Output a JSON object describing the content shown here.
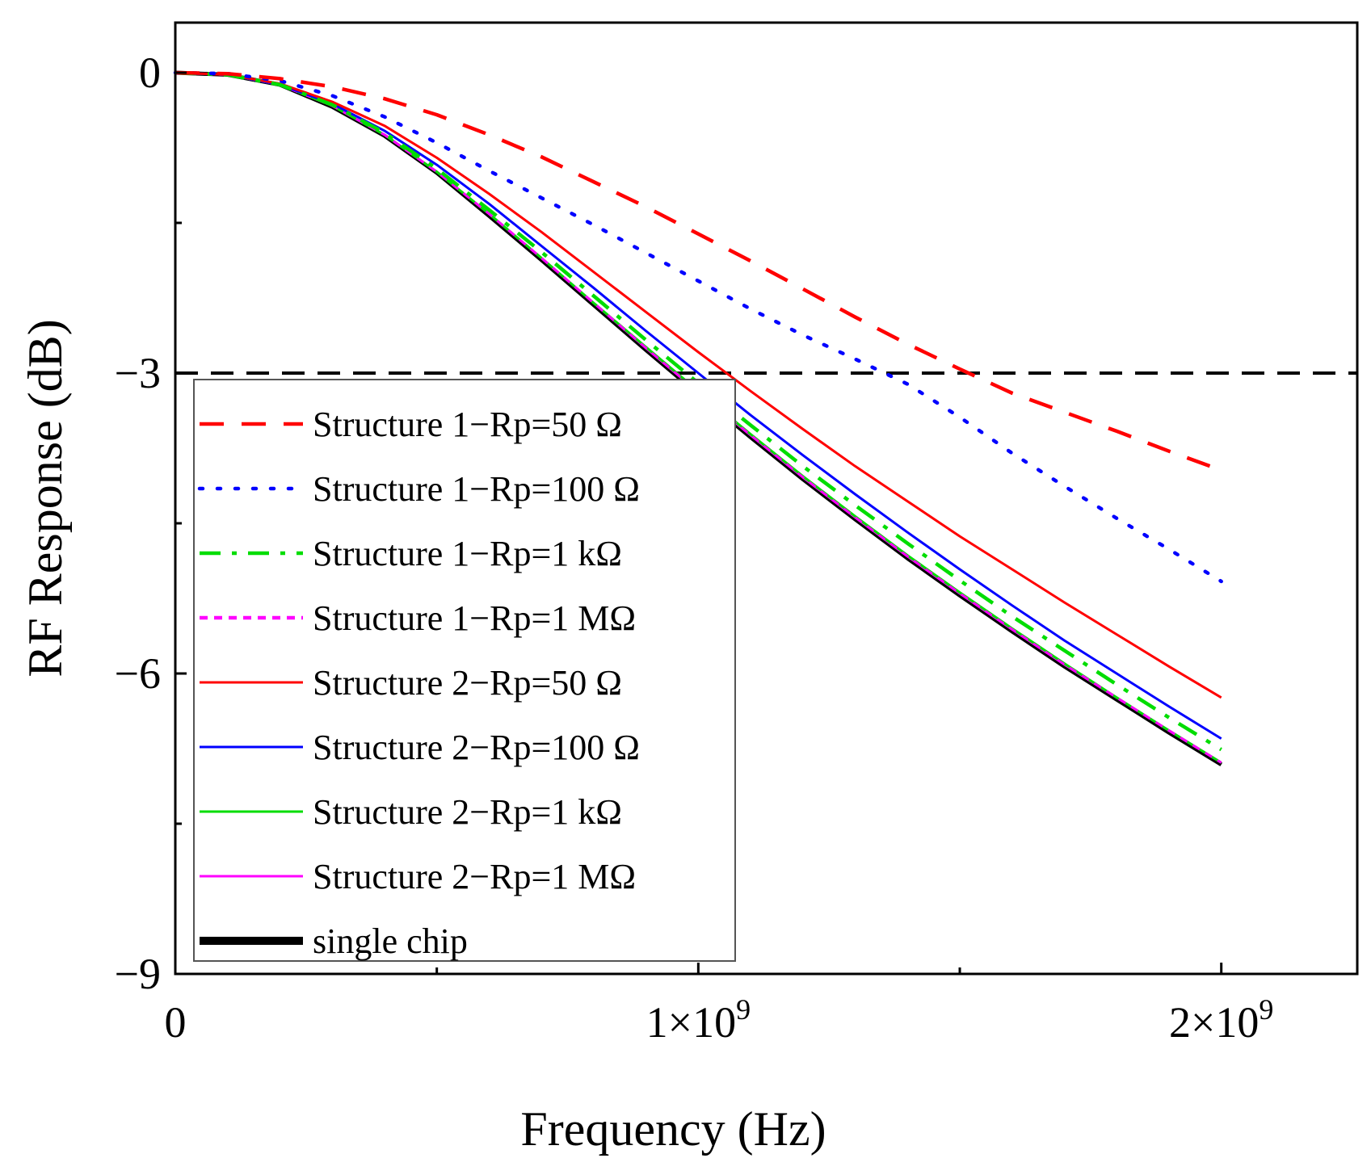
{
  "chart_data": {
    "type": "line",
    "xlabel": "Frequency (Hz)",
    "ylabel": "RF Response (dB)",
    "xlim": [
      0,
      2260000000
    ],
    "ylim": [
      -9,
      0.5
    ],
    "x_ticks": [
      {
        "value": 0,
        "label": "0"
      },
      {
        "value": 1000000000,
        "label": "1×10",
        "exp": "9"
      },
      {
        "value": 2000000000,
        "label": "2×10",
        "exp": "9"
      }
    ],
    "x_minor_ticks": [
      500000000,
      1500000000
    ],
    "y_ticks": [
      {
        "value": 0,
        "label": "0"
      },
      {
        "value": -3,
        "label": "−3"
      },
      {
        "value": -6,
        "label": "−6"
      },
      {
        "value": -9,
        "label": "−9"
      }
    ],
    "y_minor_ticks": [
      -1.5,
      -4.5,
      -7.5
    ],
    "reference_line": {
      "y": -3,
      "color": "#000000",
      "dash": "dashed"
    },
    "x_values_ghz": [
      0,
      0.1,
      0.2,
      0.3,
      0.4,
      0.5,
      0.6,
      0.7,
      0.8,
      0.9,
      1.0,
      1.1,
      1.2,
      1.3,
      1.4,
      1.5,
      1.6,
      1.7,
      1.8,
      1.9,
      2.0
    ],
    "series": [
      {
        "name": "Structure 1−Rp=50 Ω",
        "color": "#ff0000",
        "style": "dashed",
        "width": 4.5,
        "values": [
          0,
          -0.01,
          -0.06,
          -0.14,
          -0.26,
          -0.42,
          -0.62,
          -0.84,
          -1.09,
          -1.34,
          -1.61,
          -1.88,
          -2.16,
          -2.44,
          -2.71,
          -2.96,
          -3.2,
          -3.39,
          -3.58,
          -3.78,
          -3.97
        ]
      },
      {
        "name": "Structure 1−Rp=100 Ω",
        "color": "#0000ff",
        "style": "dotted",
        "width": 4.5,
        "values": [
          0,
          -0.01,
          -0.08,
          -0.23,
          -0.44,
          -0.7,
          -0.98,
          -1.25,
          -1.52,
          -1.8,
          -2.08,
          -2.36,
          -2.62,
          -2.86,
          -3.11,
          -3.44,
          -3.8,
          -4.13,
          -4.45,
          -4.76,
          -5.08
        ]
      },
      {
        "name": "Structure 1−Rp=1 kΩ",
        "color": "#00dd00",
        "style": "dashdot",
        "width": 4.5,
        "values": [
          0,
          -0.02,
          -0.12,
          -0.32,
          -0.6,
          -0.96,
          -1.37,
          -1.79,
          -2.23,
          -2.67,
          -3.1,
          -3.52,
          -3.93,
          -4.32,
          -4.7,
          -5.07,
          -5.43,
          -5.77,
          -6.11,
          -6.44,
          -6.76
        ]
      },
      {
        "name": "Structure 1−Rp=1 MΩ",
        "color": "#ff00ff",
        "style": "shortdash",
        "width": 3,
        "values": [
          0,
          -0.02,
          -0.12,
          -0.33,
          -0.62,
          -0.99,
          -1.41,
          -1.85,
          -2.3,
          -2.75,
          -3.19,
          -3.62,
          -4.04,
          -4.44,
          -4.83,
          -5.2,
          -5.56,
          -5.91,
          -6.24,
          -6.57,
          -6.89
        ]
      },
      {
        "name": "Structure 2−Rp=50 Ω",
        "color": "#ff0000",
        "style": "solid",
        "width": 3,
        "values": [
          0,
          -0.02,
          -0.11,
          -0.29,
          -0.53,
          -0.85,
          -1.21,
          -1.59,
          -1.99,
          -2.39,
          -2.79,
          -3.18,
          -3.56,
          -3.93,
          -4.28,
          -4.63,
          -4.96,
          -5.29,
          -5.61,
          -5.93,
          -6.24
        ]
      },
      {
        "name": "Structure 2−Rp=100 Ω",
        "color": "#0000ff",
        "style": "solid",
        "width": 3,
        "values": [
          0,
          -0.02,
          -0.12,
          -0.31,
          -0.58,
          -0.92,
          -1.31,
          -1.73,
          -2.15,
          -2.58,
          -3.0,
          -3.42,
          -3.82,
          -4.21,
          -4.59,
          -4.96,
          -5.32,
          -5.67,
          -6.0,
          -6.33,
          -6.65
        ]
      },
      {
        "name": "Structure 2−Rp=1 kΩ",
        "color": "#00dd00",
        "style": "solid",
        "width": 3,
        "values": [
          0,
          -0.02,
          -0.12,
          -0.33,
          -0.62,
          -0.99,
          -1.41,
          -1.85,
          -2.3,
          -2.74,
          -3.18,
          -3.61,
          -4.03,
          -4.43,
          -4.82,
          -5.19,
          -5.55,
          -5.9,
          -6.24,
          -6.57,
          -6.89
        ]
      },
      {
        "name": "Structure 2−Rp=1 MΩ",
        "color": "#ff00ff",
        "style": "solid",
        "width": 3,
        "values": [
          0,
          -0.02,
          -0.12,
          -0.33,
          -0.62,
          -0.99,
          -1.41,
          -1.85,
          -2.3,
          -2.75,
          -3.19,
          -3.62,
          -4.04,
          -4.44,
          -4.83,
          -5.2,
          -5.56,
          -5.91,
          -6.24,
          -6.57,
          -6.89
        ]
      },
      {
        "name": "single chip",
        "color": "#000000",
        "style": "solid",
        "width": 5,
        "values": [
          0,
          -0.02,
          -0.12,
          -0.34,
          -0.63,
          -1.0,
          -1.43,
          -1.87,
          -2.32,
          -2.77,
          -3.21,
          -3.64,
          -4.06,
          -4.46,
          -4.85,
          -5.22,
          -5.58,
          -5.93,
          -6.26,
          -6.59,
          -6.91
        ]
      }
    ],
    "legend_position": "bottom-left"
  }
}
